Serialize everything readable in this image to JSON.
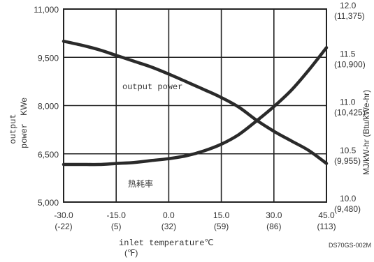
{
  "chart_data": {
    "type": "line",
    "title": "",
    "xlabel": "inlet temperature℃",
    "xlabel_sub": "(℉)",
    "ylabel_left_1": "output",
    "ylabel_left_2": "power",
    "ylabel_left_unit": "KWe",
    "ylabel_right": "MJ/kW-hr (Btu/kWe-hr)",
    "xlim": [
      -30,
      45
    ],
    "ylim_left": [
      5000,
      11000
    ],
    "ylim_right": [
      10.0,
      12.0
    ],
    "grid": true,
    "x_ticks": [
      {
        "label": "-30.0",
        "sub": "(-22)",
        "value": -30
      },
      {
        "label": "-15.0",
        "sub": "(5)",
        "value": -15
      },
      {
        "label": "0.0",
        "sub": "(32)",
        "value": 0
      },
      {
        "label": "15.0",
        "sub": "(59)",
        "value": 15
      },
      {
        "label": "30.0",
        "sub": "(86)",
        "value": 30
      },
      {
        "label": "45.0",
        "sub": "(113)",
        "value": 45
      }
    ],
    "y_left_ticks": [
      {
        "label": "11,000",
        "value": 11000
      },
      {
        "label": "9,500",
        "value": 9500
      },
      {
        "label": "8,000",
        "value": 8000
      },
      {
        "label": "6,500",
        "value": 6500
      },
      {
        "label": "5,000",
        "value": 5000
      }
    ],
    "y_right_ticks": [
      {
        "label": "12.0",
        "sub": "(11,375)",
        "value": 12.0
      },
      {
        "label": "11.5",
        "sub": "(10,900)",
        "value": 11.5
      },
      {
        "label": "11.0",
        "sub": "(10,425)",
        "value": 11.0
      },
      {
        "label": "10.5",
        "sub": "(9,955)",
        "value": 10.5
      },
      {
        "label": "10.0",
        "sub": "(9,480)",
        "value": 10.0
      }
    ],
    "series": [
      {
        "name": "output power",
        "axis": "left",
        "x": [
          -30,
          -25,
          -20,
          -15,
          -10,
          -5,
          0,
          5,
          10,
          15,
          20,
          25,
          30,
          35,
          40,
          45
        ],
        "y": [
          10000,
          9880,
          9740,
          9560,
          9380,
          9200,
          8980,
          8740,
          8500,
          8250,
          7950,
          7550,
          7200,
          6900,
          6600,
          6200
        ]
      },
      {
        "name": "热耗率",
        "axis": "right",
        "x": [
          -30,
          -25,
          -20,
          -15,
          -10,
          -5,
          0,
          5,
          10,
          15,
          20,
          25,
          30,
          35,
          40,
          45
        ],
        "y": [
          10.39,
          10.39,
          10.39,
          10.4,
          10.41,
          10.43,
          10.45,
          10.48,
          10.53,
          10.6,
          10.7,
          10.84,
          10.99,
          11.16,
          11.37,
          11.6
        ]
      }
    ],
    "annotations": {
      "series_label_1": "output power",
      "series_label_2": "热耗率",
      "figure_code": "DS70GS-002M"
    },
    "colors": {
      "line": "#2a2a2a",
      "grid": "#222222",
      "text": "#333333",
      "background": "#ffffff"
    }
  }
}
